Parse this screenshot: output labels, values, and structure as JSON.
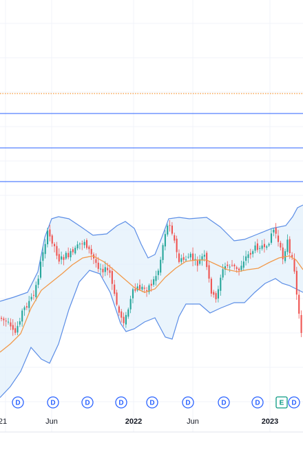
{
  "chart_data": {
    "type": "candlestick",
    "x_axis_labels": [
      "21",
      "Jun",
      "2022",
      "Jun",
      "2023"
    ],
    "horizontal_lines": [
      {
        "style": "dotted",
        "color": "#f57c00"
      },
      {
        "style": "solid",
        "color": "#2962ff"
      },
      {
        "style": "solid",
        "color": "#2962ff"
      },
      {
        "style": "solid",
        "color": "#2962ff"
      }
    ],
    "indicators": {
      "bollinger_bands": {
        "band_color": "#5b8de6",
        "fill_color": "#e3f0fb"
      },
      "moving_average": {
        "color": "#f2994a"
      }
    },
    "event_markers": [
      {
        "label": "D",
        "type": "dividend"
      },
      {
        "label": "D",
        "type": "dividend"
      },
      {
        "label": "D",
        "type": "dividend"
      },
      {
        "label": "D",
        "type": "dividend"
      },
      {
        "label": "D",
        "type": "dividend"
      },
      {
        "label": "D",
        "type": "dividend"
      },
      {
        "label": "D",
        "type": "dividend"
      },
      {
        "label": "D",
        "type": "dividend"
      },
      {
        "label": "E",
        "type": "earnings"
      },
      {
        "label": "D",
        "type": "dividend"
      }
    ],
    "colors": {
      "up": "#26a69a",
      "down": "#ef5350",
      "dividend": "#2962ff",
      "earnings": "#089981",
      "grid": "#f0f3fa"
    },
    "grid": true
  }
}
